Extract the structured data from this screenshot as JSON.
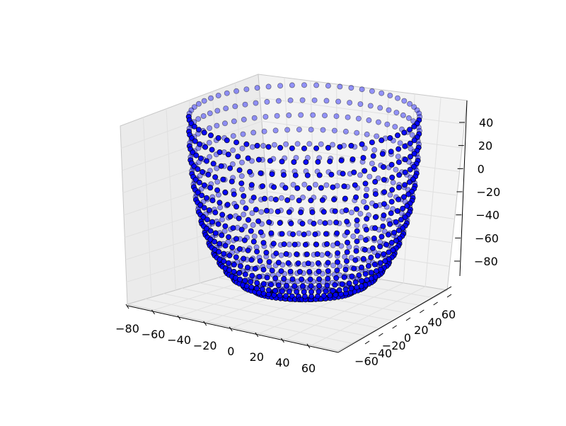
{
  "chart_data": {
    "type": "scatter3d",
    "title": "",
    "xlabel": "",
    "ylabel": "",
    "zlabel": "",
    "grid": true,
    "colors": {
      "marker": "#0000ff",
      "edge": "#000000",
      "pane": "#f2f2f2",
      "pane_side": "#ebebeb",
      "grid": "#e6e6e6"
    },
    "xlim": [
      -80,
      70
    ],
    "ylim": [
      -70,
      70
    ],
    "zlim": [
      -95,
      50
    ],
    "x_ticks": [
      "−80",
      "−60",
      "−40",
      "−20",
      "0",
      "20",
      "40",
      "60"
    ],
    "y_ticks": [
      "−60",
      "−40",
      "−20",
      "0",
      "20",
      "40",
      "60"
    ],
    "z_ticks": [
      "40",
      "20",
      "0",
      "−20",
      "−40",
      "−60",
      "−80"
    ],
    "series": [
      {
        "shape": "bowl",
        "center": [
          -6,
          0,
          0
        ],
        "rim_radius": 62,
        "rim_z": 40,
        "bottom_z": -95,
        "rings": 18,
        "points_per_ring": 60
      }
    ]
  }
}
